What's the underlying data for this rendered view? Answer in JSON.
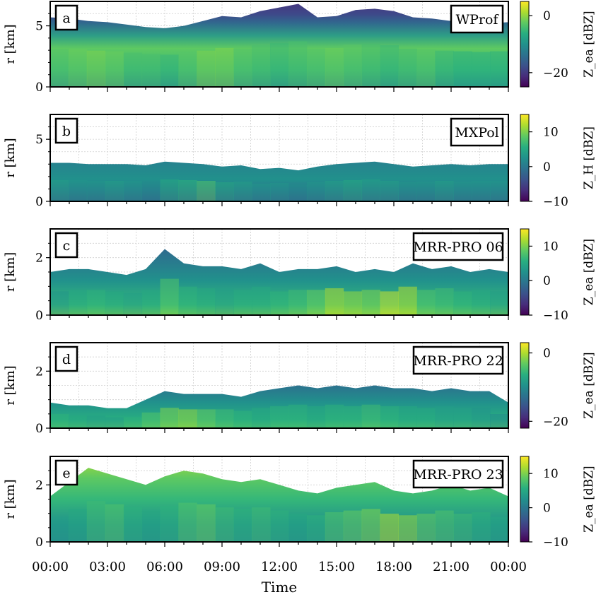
{
  "chart_data": {
    "type": "heatmap",
    "xlabel": "Time",
    "x_ticks": [
      "00:00",
      "03:00",
      "06:00",
      "09:00",
      "12:00",
      "15:00",
      "18:00",
      "21:00",
      "00:00"
    ],
    "xlim_hours": [
      0,
      24
    ],
    "grid": true,
    "colormap": "viridis",
    "panels": [
      {
        "letter": "a",
        "instrument": "WProf",
        "ylabel": "r [km]",
        "ylim": [
          0,
          7
        ],
        "yticks": [
          "0",
          "5"
        ],
        "cbar_label": "Z_ea [dBZ]",
        "cbar_ticks": [
          "−20",
          "0"
        ],
        "clim": [
          -25,
          5
        ],
        "top_km": [
          5.7,
          5.6,
          5.4,
          5.3,
          5.1,
          4.9,
          4.8,
          5.0,
          5.4,
          5.8,
          5.7,
          6.2,
          6.5,
          6.8,
          5.7,
          5.8,
          6.3,
          6.4,
          6.2,
          5.7,
          5.6,
          5.4,
          5.3,
          5.2,
          5.3
        ],
        "zmax": [
          -3,
          -2,
          -1,
          -2,
          -4,
          -4,
          -5,
          -3,
          -1,
          -1,
          -3,
          -4,
          -5,
          -4,
          -3,
          -2,
          -3,
          -4,
          -5,
          -4,
          -3,
          -5,
          -6,
          -6,
          -6
        ]
      },
      {
        "letter": "b",
        "instrument": "MXPol",
        "ylabel": "r [km]",
        "ylim": [
          0,
          7
        ],
        "yticks": [
          "0",
          "5"
        ],
        "cbar_label": "Z_H [dBZ]",
        "cbar_ticks": [
          "−10",
          "0",
          "10"
        ],
        "clim": [
          -10,
          15
        ],
        "top_km": [
          3.1,
          3.1,
          3.0,
          3.0,
          3.0,
          2.9,
          3.2,
          3.1,
          3.0,
          2.8,
          2.9,
          2.6,
          2.7,
          2.5,
          2.8,
          3.0,
          3.1,
          3.2,
          3.0,
          2.8,
          2.9,
          3.0,
          2.9,
          3.0,
          3.0
        ],
        "zmax": [
          4,
          3,
          3,
          4,
          3,
          2,
          5,
          6,
          8,
          5,
          4,
          3,
          3,
          2,
          3,
          4,
          5,
          4,
          4,
          3,
          3,
          4,
          3,
          3,
          3
        ]
      },
      {
        "letter": "c",
        "instrument": "MRR-PRO 06",
        "ylabel": "r [km]",
        "ylim": [
          0,
          3
        ],
        "yticks": [
          "0",
          "2"
        ],
        "cbar_label": "Z_ea [dBZ]",
        "cbar_ticks": [
          "−10",
          "0",
          "10"
        ],
        "clim": [
          -10,
          15
        ],
        "top_km": [
          1.5,
          1.6,
          1.6,
          1.5,
          1.4,
          1.6,
          2.3,
          1.8,
          1.7,
          1.7,
          1.6,
          1.8,
          1.5,
          1.6,
          1.6,
          1.7,
          1.5,
          1.6,
          1.5,
          1.8,
          1.6,
          1.7,
          1.5,
          1.6,
          1.5
        ],
        "zmax": [
          3,
          5,
          6,
          5,
          4,
          5,
          8,
          6,
          5,
          4,
          5,
          5,
          6,
          7,
          9,
          12,
          11,
          10,
          13,
          12,
          8,
          7,
          6,
          5,
          4
        ]
      },
      {
        "letter": "d",
        "instrument": "MRR-PRO 22",
        "ylabel": "r [km]",
        "ylim": [
          0,
          3
        ],
        "yticks": [
          "0",
          "2"
        ],
        "cbar_label": "Z_ea [dBZ]",
        "cbar_ticks": [
          "−20",
          "0"
        ],
        "clim": [
          -22,
          3
        ],
        "top_km": [
          0.9,
          0.8,
          0.8,
          0.7,
          0.7,
          1.0,
          1.3,
          1.2,
          1.2,
          1.2,
          1.1,
          1.3,
          1.4,
          1.5,
          1.4,
          1.5,
          1.4,
          1.5,
          1.4,
          1.4,
          1.3,
          1.4,
          1.3,
          1.3,
          0.9
        ],
        "zmax": [
          -6,
          -7,
          -8,
          -8,
          -6,
          -4,
          -2,
          -1,
          -3,
          -5,
          -6,
          -7,
          -6,
          -6,
          -7,
          -6,
          -6,
          -5,
          -6,
          -7,
          -7,
          -8,
          -8,
          -9,
          -10
        ]
      },
      {
        "letter": "e",
        "instrument": "MRR-PRO 23",
        "ylabel": "r [km]",
        "ylim": [
          0,
          3
        ],
        "yticks": [
          "0",
          "2"
        ],
        "cbar_label": "Z_ea [dBZ]",
        "cbar_ticks": [
          "−10",
          "0",
          "10"
        ],
        "clim": [
          -10,
          15
        ],
        "top_km": [
          1.6,
          2.1,
          2.6,
          2.4,
          2.2,
          2.0,
          2.3,
          2.5,
          2.4,
          2.2,
          2.1,
          2.2,
          2.0,
          1.8,
          1.7,
          1.9,
          2.0,
          2.1,
          1.8,
          1.7,
          1.8,
          2.0,
          1.8,
          1.9,
          1.6
        ],
        "zmax": [
          4,
          5,
          7,
          8,
          6,
          5,
          6,
          8,
          9,
          7,
          6,
          7,
          6,
          5,
          6,
          8,
          9,
          10,
          12,
          11,
          9,
          8,
          7,
          6,
          5
        ]
      }
    ]
  }
}
